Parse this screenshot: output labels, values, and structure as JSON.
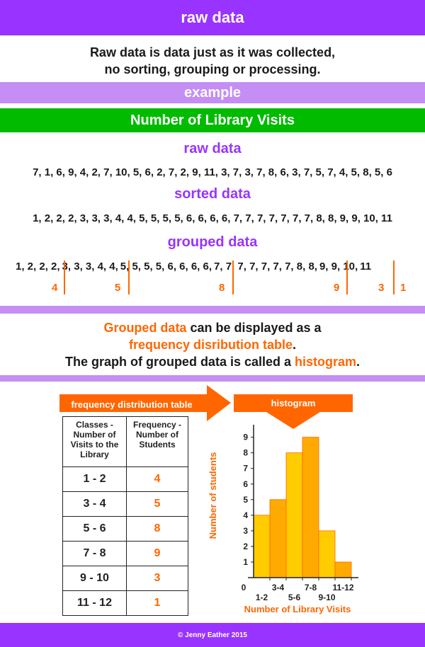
{
  "header": {
    "title": "raw data"
  },
  "definition": {
    "line1": "Raw data is data just as it was collected,",
    "line2": "no sorting, grouping or processing."
  },
  "example_band": {
    "label": "example"
  },
  "title_band": {
    "label": "Number of Library Visits"
  },
  "raw": {
    "heading": "raw data",
    "values": "7, 1, 6, 9, 4, 2, 7, 10, 5, 6, 2, 7, 2, 9, 11, 3, 7, 3, 7, 8, 6, 3, 7, 5, 7, 4, 5, 8, 5, 6"
  },
  "sorted": {
    "heading": "sorted data",
    "values": "1, 2, 2, 2, 3, 3, 3, 4, 4, 5, 5, 5, 5, 6, 6, 6, 6, 7, 7, 7, 7, 7, 7, 7, 8, 8, 9, 9, 10, 11"
  },
  "grouped": {
    "heading": "grouped data",
    "segments": [
      "1, 2, 2, 2,",
      "3, 3, 3, 4, 4,",
      "5, 5, 5, 5, 6, 6, 6, 6,",
      "7, 7, 7, 7, 7, 7, 7, 8, 8,",
      "9, 9, 10,",
      "11"
    ],
    "counts": [
      "4",
      "5",
      "8",
      "9",
      "3",
      "1"
    ]
  },
  "explanation": {
    "p1": "Grouped data",
    "p2": " can be displayed as a",
    "p3": "frequency disribution table",
    "p4": ".",
    "p5": "The graph of grouped data is called a ",
    "p6": "histogram",
    "p7": "."
  },
  "arrows": {
    "table_label": "frequency distribution table",
    "histogram_label": "histogram"
  },
  "table": {
    "col1_header": "Classes - Number of Visits to the Library",
    "col2_header": "Frequency - Number of Students",
    "rows": [
      {
        "cls": "1 - 2",
        "freq": "4"
      },
      {
        "cls": "3 - 4",
        "freq": "5"
      },
      {
        "cls": "5 - 6",
        "freq": "8"
      },
      {
        "cls": "7 - 8",
        "freq": "9"
      },
      {
        "cls": "9 - 10",
        "freq": "3"
      },
      {
        "cls": "11 - 12",
        "freq": "1"
      }
    ]
  },
  "chart_data": {
    "type": "bar",
    "categories": [
      "1-2",
      "3-4",
      "5-6",
      "7-8",
      "9-10",
      "11-12"
    ],
    "values": [
      4,
      5,
      8,
      9,
      3,
      1
    ],
    "xlabel": "Number of Library Visits",
    "ylabel": "Number of students",
    "ylim": [
      0,
      9.8
    ],
    "yticks": [
      "1",
      "2",
      "3",
      "4",
      "5",
      "6",
      "7",
      "8",
      "9"
    ],
    "origin_label": "0",
    "bar_colors": [
      "#ffcc00",
      "#ffaa00"
    ],
    "bar_edge_color": "#ff6600",
    "grid": false
  },
  "footer": {
    "text": "© Jenny Eather 2015"
  },
  "colors": {
    "purple": "#9933ff",
    "lilac": "#c48ef5",
    "green": "#00bb00",
    "orange": "#ff6600"
  }
}
